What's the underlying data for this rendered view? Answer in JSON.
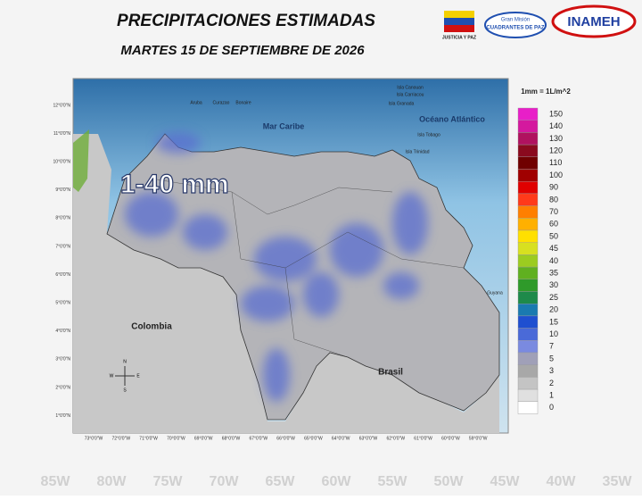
{
  "header": {
    "title": "PRECIPITACIONES ESTIMADAS",
    "subtitle": "MARTES 15 DE SEPTIEMBRE DE 2026",
    "logos": [
      "JUSTICIA Y PAZ",
      "Gran Misión",
      "CUADRANTES DE PAZ",
      "INAMEH"
    ]
  },
  "map": {
    "range_label": "1-40 mm",
    "places": [
      "Mar Caribe",
      "Océano Atlántico",
      "Colombia",
      "Brasil",
      "Aruba",
      "Curazao",
      "Bonaire",
      "Guyana",
      "Isla Trinidad",
      "Isla Tobago",
      "Isla Granada",
      "Isla Carriacou",
      "Isla Canouan"
    ],
    "lat_labels": [
      "12°0'0\"N",
      "11°0'0\"N",
      "10°0'0\"N",
      "9°0'0\"N",
      "8°0'0\"N",
      "7°0'0\"N",
      "6°0'0\"N",
      "5°0'0\"N",
      "4°0'0\"N",
      "3°0'0\"N",
      "2°0'0\"N",
      "1°0'0\"N"
    ],
    "lon_labels": [
      "73°0'0\"W",
      "72°0'0\"W",
      "71°0'0\"W",
      "70°0'0\"W",
      "69°0'0\"W",
      "68°0'0\"W",
      "67°0'0\"W",
      "66°0'0\"W",
      "65°0'0\"W",
      "64°0'0\"W",
      "63°0'0\"W",
      "62°0'0\"W",
      "61°0'0\"W",
      "60°0'0\"W",
      "59°0'0\"W"
    ],
    "compass": [
      "N",
      "S",
      "E",
      "W"
    ]
  },
  "legend": {
    "unit": "1mm = 1L/m^2",
    "items": [
      {
        "value": 150,
        "color": "#e81fc8"
      },
      {
        "value": 140,
        "color": "#d4199e"
      },
      {
        "value": 130,
        "color": "#b0125f"
      },
      {
        "value": 120,
        "color": "#8a0a1e"
      },
      {
        "value": 110,
        "color": "#700000"
      },
      {
        "value": 100,
        "color": "#a00000"
      },
      {
        "value": 90,
        "color": "#e00000"
      },
      {
        "value": 80,
        "color": "#ff3a1a"
      },
      {
        "value": 70,
        "color": "#ff7f00"
      },
      {
        "value": 60,
        "color": "#ffb000"
      },
      {
        "value": 50,
        "color": "#ffe000"
      },
      {
        "value": 45,
        "color": "#d8e020"
      },
      {
        "value": 40,
        "color": "#9ccc20"
      },
      {
        "value": 35,
        "color": "#60b020"
      },
      {
        "value": 30,
        "color": "#2f9a2a"
      },
      {
        "value": 25,
        "color": "#1e8a4a"
      },
      {
        "value": 20,
        "color": "#1a7ab0"
      },
      {
        "value": 15,
        "color": "#1f4fd0"
      },
      {
        "value": 10,
        "color": "#4a6ad8"
      },
      {
        "value": 7,
        "color": "#7a8ae0"
      },
      {
        "value": 5,
        "color": "#a0a0b8"
      },
      {
        "value": 3,
        "color": "#a8a8a8"
      },
      {
        "value": 2,
        "color": "#c4c4c4"
      },
      {
        "value": 1,
        "color": "#e0e0e0"
      },
      {
        "value": 0,
        "color": "#ffffff"
      }
    ]
  },
  "background_labels": [
    "85W",
    "80W",
    "75W",
    "70W",
    "65W",
    "60W",
    "55W",
    "50W",
    "45W",
    "40W",
    "35W"
  ]
}
